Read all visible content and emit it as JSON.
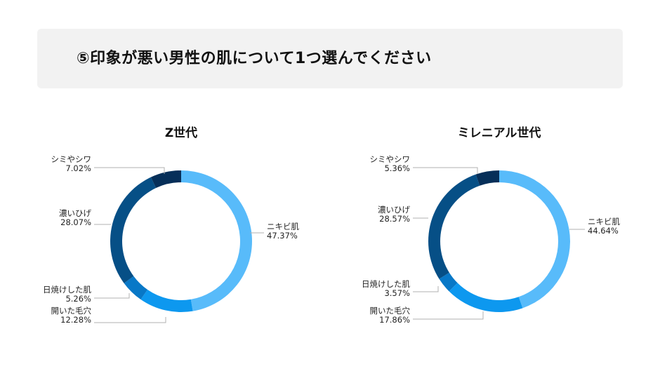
{
  "header": {
    "title": "⑤印象が悪い男性の肌について1つ選んでください"
  },
  "colors": {
    "banner_bg": "#f2f2f2",
    "leader_line": "#b0b0b0"
  },
  "chart_data": [
    {
      "type": "pie",
      "title": "Z世代",
      "donut": true,
      "categories": [
        "ニキビ肌",
        "開いた毛穴",
        "日焼けした肌",
        "濃いひげ",
        "シミやシワ"
      ],
      "values": [
        47.37,
        12.28,
        5.26,
        28.07,
        7.02
      ],
      "value_labels": [
        "47.37%",
        "12.28%",
        "5.26%",
        "28.07%",
        "7.02%"
      ],
      "colors": [
        "#58bbfa",
        "#0d98ef",
        "#0878c7",
        "#064f86",
        "#062f59"
      ]
    },
    {
      "type": "pie",
      "title": "ミレニアル世代",
      "donut": true,
      "categories": [
        "ニキビ肌",
        "開いた毛穴",
        "日焼けした肌",
        "濃いひげ",
        "シミやシワ"
      ],
      "values": [
        44.64,
        17.86,
        3.57,
        28.57,
        5.36
      ],
      "value_labels": [
        "44.64%",
        "17.86%",
        "3.57%",
        "28.57%",
        "5.36%"
      ],
      "colors": [
        "#58bbfa",
        "#0d98ef",
        "#0878c7",
        "#064f86",
        "#062f59"
      ]
    }
  ]
}
